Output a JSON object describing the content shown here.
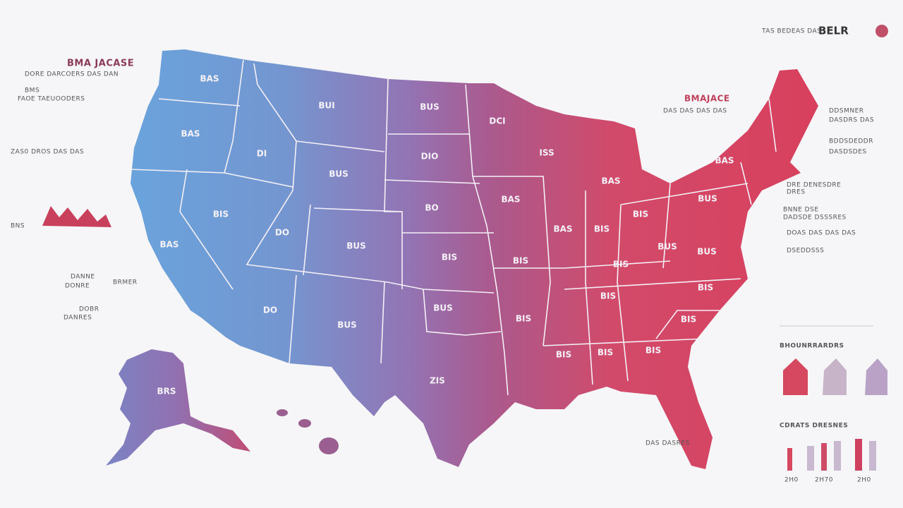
{
  "header": {
    "title": "BELR",
    "subtitle": "TAS BEDEAS DAS"
  },
  "left_notes": [
    "BMA JACASE",
    "DORE DARCOERS DAS DAN",
    "BMS",
    "FAOE TAEUOODERS",
    "ZAS0 DROS DAS DAS",
    "BNS",
    "DANNE",
    "DONRE",
    "BRMER",
    "DOBR",
    "DANRES"
  ],
  "right_notes": [
    "BMAJACE",
    "DAS DAS DAS DAS",
    "DDSMNER",
    "DASDRS DAS",
    "BDDSDEDDR",
    "DASDSDES",
    "DRE DENESDRE",
    "DRES",
    "BNNE DSE",
    "DADSDE DSSSRES",
    "DOAS DAS DAS DAS",
    "DSEDDSSS",
    "DAS DASRES"
  ],
  "map": {
    "state_labels": [
      "BAS",
      "BUI",
      "BUS",
      "DCI",
      "BAS",
      "ISS",
      "DIO",
      "DI",
      "BUS",
      "BAS",
      "BAS",
      "BUS",
      "BAS",
      "BO",
      "BIS",
      "BIS",
      "BAS",
      "BIS",
      "BAS",
      "DO",
      "BUS",
      "BUS",
      "BUS",
      "BIS",
      "BIS",
      "BIS",
      "BIS",
      "BIS",
      "BUS",
      "DO",
      "BUS",
      "BIS",
      "BIS",
      "BIS",
      "BIS",
      "BIS",
      "ZIS",
      "BRS"
    ]
  },
  "legend": {
    "title": "BHOUNRRARDRS",
    "chart_title": "CDRATS DRESNES",
    "labels": [
      "2H0",
      "2H70",
      "2H0"
    ]
  }
}
